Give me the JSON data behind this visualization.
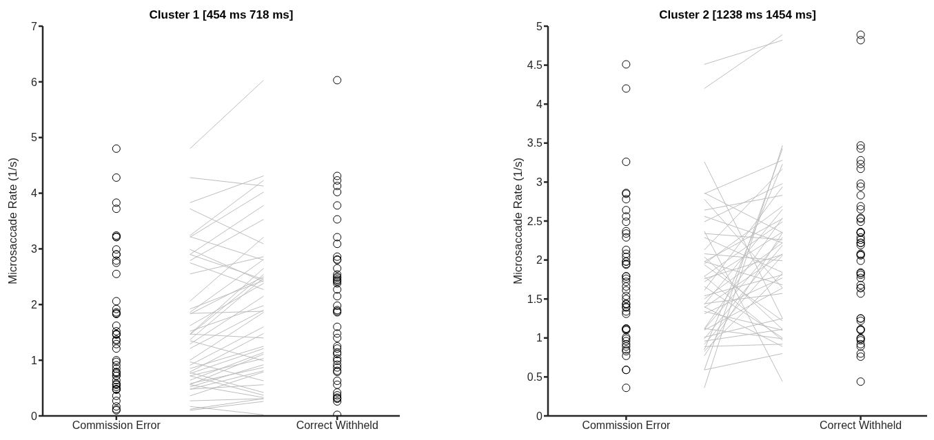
{
  "chart_data": [
    {
      "type": "scatter",
      "title": "Cluster 1 [454 ms 718 ms]",
      "ylabel": "Microsaccade Rate (1/s)",
      "line_style": "solid",
      "categories": [
        "Commission Error",
        null,
        null,
        "Correct Withheld"
      ],
      "ylim": [
        0,
        7
      ],
      "yticks": [
        0,
        1,
        2,
        3,
        4,
        5,
        6,
        7
      ],
      "series": [
        {
          "color": "#000000",
          "marker": "circle",
          "x": [
            "Commission Error",
            "Commission Error",
            "Commission Error",
            "Commission Error",
            "Commission Error",
            "Commission Error",
            "Commission Error",
            "Commission Error",
            "Commission Error",
            "Commission Error",
            "Commission Error",
            "Commission Error",
            "Commission Error",
            "Commission Error",
            "Commission Error",
            "Commission Error",
            "Commission Error",
            "Commission Error",
            "Commission Error",
            "Commission Error",
            "Commission Error",
            "Commission Error",
            "Commission Error",
            "Commission Error",
            "Commission Error",
            "Commission Error",
            "Commission Error",
            "Commission Error",
            "Commission Error",
            "Commission Error",
            "Commission Error",
            "Commission Error",
            "Commission Error",
            "Commission Error",
            "Commission Error",
            "Commission Error",
            "Commission Error",
            "Commission Error",
            "Commission Error",
            "Commission Error",
            "Commission Error",
            "Commission Error",
            "Commission Error",
            "Commission Error",
            "Commission Error",
            "Commission Error",
            "Commission Error",
            "Commission Error",
            "Commission Error"
          ],
          "values": [
            4.8,
            4.28,
            3.83,
            3.72,
            3.21,
            3.24,
            3.22,
            2.99,
            2.9,
            2.9,
            2.75,
            2.79,
            2.55,
            2.06,
            1.92,
            1.84,
            1.83,
            1.86,
            1.62,
            1.52,
            1.47,
            1.47,
            1.35,
            1.29,
            1.21,
            1.46,
            1.37,
            0.97,
            0.91,
            1.0,
            0.85,
            0.76,
            0.78,
            0.79,
            0.72,
            0.72,
            0.64,
            0.56,
            0.52,
            0.56,
            0.58,
            0.48,
            0.47,
            0.48,
            0.36,
            0.27,
            0.17,
            0.12,
            0.1
          ]
        },
        {
          "color": "#000000",
          "marker": "circle",
          "x": [
            "Correct Withheld",
            "Correct Withheld",
            "Correct Withheld",
            "Correct Withheld",
            "Correct Withheld",
            "Correct Withheld",
            "Correct Withheld",
            "Correct Withheld",
            "Correct Withheld",
            "Correct Withheld",
            "Correct Withheld",
            "Correct Withheld",
            "Correct Withheld",
            "Correct Withheld",
            "Correct Withheld",
            "Correct Withheld",
            "Correct Withheld",
            "Correct Withheld",
            "Correct Withheld",
            "Correct Withheld",
            "Correct Withheld",
            "Correct Withheld",
            "Correct Withheld",
            "Correct Withheld",
            "Correct Withheld",
            "Correct Withheld",
            "Correct Withheld",
            "Correct Withheld",
            "Correct Withheld",
            "Correct Withheld",
            "Correct Withheld",
            "Correct Withheld",
            "Correct Withheld",
            "Correct Withheld",
            "Correct Withheld",
            "Correct Withheld",
            "Correct Withheld",
            "Correct Withheld",
            "Correct Withheld",
            "Correct Withheld",
            "Correct Withheld",
            "Correct Withheld",
            "Correct Withheld",
            "Correct Withheld",
            "Correct Withheld",
            "Correct Withheld",
            "Correct Withheld",
            "Correct Withheld"
          ],
          "values": [
            6.03,
            4.23,
            4.31,
            4.13,
            4.02,
            3.78,
            3.53,
            3.21,
            3.09,
            2.81,
            2.8,
            2.86,
            2.65,
            2.45,
            2.43,
            2.38,
            2.48,
            2.5,
            2.54,
            2.41,
            2.27,
            2.15,
            1.98,
            1.88,
            1.86,
            1.9,
            1.6,
            1.48,
            1.4,
            1.25,
            1.21,
            1.14,
            1.11,
            0.99,
            0.92,
            0.87,
            0.79,
            1.03,
            0.81,
            0.63,
            0.56,
            0.31,
            0.37,
            0.31,
            0.42,
            0.33,
            0.26,
            0.02
          ]
        },
        {
          "type": "line",
          "color": "#bdbdbd",
          "values": [
            null,
            4.8,
            6.03,
            null
          ]
        },
        {
          "type": "line",
          "color": "#bdbdbd",
          "values": [
            null,
            4.28,
            4.13,
            null
          ]
        },
        {
          "type": "line",
          "color": "#bdbdbd",
          "values": [
            null,
            3.83,
            4.31,
            null
          ]
        },
        {
          "type": "line",
          "color": "#bdbdbd",
          "values": [
            null,
            3.72,
            3.09,
            null
          ]
        },
        {
          "type": "line",
          "color": "#bdbdbd",
          "values": [
            null,
            3.24,
            4.23,
            null
          ]
        },
        {
          "type": "line",
          "color": "#bdbdbd",
          "values": [
            null,
            3.22,
            2.8,
            null
          ]
        },
        {
          "type": "line",
          "color": "#bdbdbd",
          "values": [
            null,
            3.21,
            4.02,
            null
          ]
        },
        {
          "type": "line",
          "color": "#bdbdbd",
          "values": [
            null,
            2.99,
            2.41,
            null
          ]
        },
        {
          "type": "line",
          "color": "#bdbdbd",
          "values": [
            null,
            2.9,
            3.78,
            null
          ]
        },
        {
          "type": "line",
          "color": "#bdbdbd",
          "values": [
            null,
            2.9,
            2.45,
            null
          ]
        },
        {
          "type": "line",
          "color": "#bdbdbd",
          "values": [
            null,
            2.79,
            3.53,
            null
          ]
        },
        {
          "type": "line",
          "color": "#bdbdbd",
          "values": [
            null,
            2.75,
            2.27,
            null
          ]
        },
        {
          "type": "line",
          "color": "#bdbdbd",
          "values": [
            null,
            2.55,
            2.86,
            null
          ]
        },
        {
          "type": "line",
          "color": "#bdbdbd",
          "values": [
            null,
            2.06,
            3.21,
            null
          ]
        },
        {
          "type": "line",
          "color": "#bdbdbd",
          "values": [
            null,
            1.92,
            2.43,
            null
          ]
        },
        {
          "type": "line",
          "color": "#bdbdbd",
          "values": [
            null,
            1.86,
            2.81,
            null
          ]
        },
        {
          "type": "line",
          "color": "#bdbdbd",
          "values": [
            null,
            1.84,
            1.88,
            null
          ]
        },
        {
          "type": "line",
          "color": "#bdbdbd",
          "values": [
            null,
            1.83,
            2.5,
            null
          ]
        },
        {
          "type": "line",
          "color": "#bdbdbd",
          "values": [
            null,
            1.62,
            2.38,
            null
          ]
        },
        {
          "type": "line",
          "color": "#bdbdbd",
          "values": [
            null,
            1.52,
            1.98,
            null
          ]
        },
        {
          "type": "line",
          "color": "#bdbdbd",
          "values": [
            null,
            1.47,
            2.65,
            null
          ]
        },
        {
          "type": "line",
          "color": "#bdbdbd",
          "values": [
            null,
            1.47,
            1.4,
            null
          ]
        },
        {
          "type": "line",
          "color": "#bdbdbd",
          "values": [
            null,
            1.46,
            2.54,
            null
          ]
        },
        {
          "type": "line",
          "color": "#bdbdbd",
          "values": [
            null,
            1.37,
            2.48,
            null
          ]
        },
        {
          "type": "line",
          "color": "#bdbdbd",
          "values": [
            null,
            1.35,
            0.99,
            null
          ]
        },
        {
          "type": "line",
          "color": "#bdbdbd",
          "values": [
            null,
            1.29,
            2.15,
            null
          ]
        },
        {
          "type": "line",
          "color": "#bdbdbd",
          "values": [
            null,
            1.21,
            1.9,
            null
          ]
        },
        {
          "type": "line",
          "color": "#bdbdbd",
          "values": [
            null,
            1.0,
            1.86,
            null
          ]
        },
        {
          "type": "line",
          "color": "#bdbdbd",
          "values": [
            null,
            0.97,
            0.63,
            null
          ]
        },
        {
          "type": "line",
          "color": "#bdbdbd",
          "values": [
            null,
            0.91,
            1.6,
            null
          ]
        },
        {
          "type": "line",
          "color": "#bdbdbd",
          "values": [
            null,
            0.85,
            1.25,
            null
          ]
        },
        {
          "type": "line",
          "color": "#bdbdbd",
          "values": [
            null,
            0.79,
            1.48,
            null
          ]
        },
        {
          "type": "line",
          "color": "#bdbdbd",
          "values": [
            null,
            0.78,
            0.42,
            null
          ]
        },
        {
          "type": "line",
          "color": "#bdbdbd",
          "values": [
            null,
            0.76,
            1.21,
            null
          ]
        },
        {
          "type": "line",
          "color": "#bdbdbd",
          "values": [
            null,
            0.72,
            1.03,
            null
          ]
        },
        {
          "type": "line",
          "color": "#bdbdbd",
          "values": [
            null,
            0.72,
            0.37,
            null
          ]
        },
        {
          "type": "line",
          "color": "#bdbdbd",
          "values": [
            null,
            0.64,
            1.14,
            null
          ]
        },
        {
          "type": "line",
          "color": "#bdbdbd",
          "values": [
            null,
            0.58,
            0.87,
            null
          ]
        },
        {
          "type": "line",
          "color": "#bdbdbd",
          "values": [
            null,
            0.56,
            1.11,
            null
          ]
        },
        {
          "type": "line",
          "color": "#bdbdbd",
          "values": [
            null,
            0.56,
            0.33,
            null
          ]
        },
        {
          "type": "line",
          "color": "#bdbdbd",
          "values": [
            null,
            0.52,
            0.92,
            null
          ]
        },
        {
          "type": "line",
          "color": "#bdbdbd",
          "values": [
            null,
            0.48,
            0.56,
            null
          ]
        },
        {
          "type": "line",
          "color": "#bdbdbd",
          "values": [
            null,
            0.48,
            0.81,
            null
          ]
        },
        {
          "type": "line",
          "color": "#bdbdbd",
          "values": [
            null,
            0.36,
            0.79,
            null
          ]
        },
        {
          "type": "line",
          "color": "#bdbdbd",
          "values": [
            null,
            0.27,
            0.31,
            null
          ]
        },
        {
          "type": "line",
          "color": "#bdbdbd",
          "values": [
            null,
            0.17,
            0.02,
            null
          ]
        },
        {
          "type": "line",
          "color": "#bdbdbd",
          "values": [
            null,
            0.12,
            0.31,
            null
          ]
        },
        {
          "type": "line",
          "color": "#bdbdbd",
          "values": [
            null,
            0.1,
            0.26,
            null
          ]
        }
      ]
    },
    {
      "type": "scatter",
      "title": "Cluster 2 [1238 ms 1454 ms]",
      "ylabel": "Microsaccade Rate (1/s)",
      "line_style": "solid",
      "categories": [
        "Commission Error",
        null,
        null,
        "Correct Withheld"
      ],
      "ylim": [
        0,
        5
      ],
      "yticks": [
        0,
        0.5,
        1,
        1.5,
        2,
        2.5,
        3,
        3.5,
        4,
        4.5,
        5
      ],
      "series": [
        {
          "color": "#000000",
          "marker": "circle",
          "x": [
            "Commission Error",
            "Commission Error",
            "Commission Error",
            "Commission Error",
            "Commission Error",
            "Commission Error",
            "Commission Error",
            "Commission Error",
            "Commission Error",
            "Commission Error",
            "Commission Error",
            "Commission Error",
            "Commission Error",
            "Commission Error",
            "Commission Error",
            "Commission Error",
            "Commission Error",
            "Commission Error",
            "Commission Error",
            "Commission Error",
            "Commission Error",
            "Commission Error",
            "Commission Error",
            "Commission Error",
            "Commission Error",
            "Commission Error",
            "Commission Error",
            "Commission Error",
            "Commission Error",
            "Commission Error",
            "Commission Error",
            "Commission Error",
            "Commission Error",
            "Commission Error",
            "Commission Error",
            "Commission Error",
            "Commission Error",
            "Commission Error",
            "Commission Error",
            "Commission Error",
            "Commission Error",
            "Commission Error",
            "Commission Error",
            "Commission Error",
            "Commission Error",
            "Commission Error",
            "Commission Error",
            "Commission Error"
          ],
          "values": [
            4.51,
            4.2,
            3.26,
            2.86,
            2.85,
            2.78,
            2.64,
            2.56,
            2.49,
            2.37,
            2.34,
            2.29,
            2.13,
            2.08,
            2.04,
            1.94,
            1.95,
            1.98,
            1.98,
            1.79,
            1.79,
            1.72,
            1.76,
            1.66,
            1.61,
            1.54,
            1.5,
            1.44,
            1.39,
            1.34,
            1.31,
            1.43,
            1.4,
            1.12,
            1.12,
            1.11,
            1.1,
            1.01,
            0.99,
            0.96,
            0.92,
            0.89,
            0.85,
            0.83,
            0.77,
            0.59,
            0.59,
            0.36
          ]
        },
        {
          "color": "#000000",
          "marker": "circle",
          "x": [
            "Correct Withheld",
            "Correct Withheld",
            "Correct Withheld",
            "Correct Withheld",
            "Correct Withheld",
            "Correct Withheld",
            "Correct Withheld",
            "Correct Withheld",
            "Correct Withheld",
            "Correct Withheld",
            "Correct Withheld",
            "Correct Withheld",
            "Correct Withheld",
            "Correct Withheld",
            "Correct Withheld",
            "Correct Withheld",
            "Correct Withheld",
            "Correct Withheld",
            "Correct Withheld",
            "Correct Withheld",
            "Correct Withheld",
            "Correct Withheld",
            "Correct Withheld",
            "Correct Withheld",
            "Correct Withheld",
            "Correct Withheld",
            "Correct Withheld",
            "Correct Withheld",
            "Correct Withheld",
            "Correct Withheld",
            "Correct Withheld",
            "Correct Withheld",
            "Correct Withheld",
            "Correct Withheld",
            "Correct Withheld",
            "Correct Withheld",
            "Correct Withheld",
            "Correct Withheld",
            "Correct Withheld",
            "Correct Withheld",
            "Correct Withheld",
            "Correct Withheld",
            "Correct Withheld",
            "Correct Withheld",
            "Correct Withheld",
            "Correct Withheld",
            "Correct Withheld",
            "Correct Withheld",
            "Correct Withheld"
          ],
          "values": [
            4.89,
            4.82,
            3.47,
            3.43,
            3.28,
            3.23,
            3.17,
            2.98,
            2.94,
            2.83,
            2.69,
            2.65,
            2.53,
            2.54,
            2.49,
            2.35,
            2.36,
            2.35,
            2.29,
            2.26,
            2.22,
            2.22,
            2.19,
            2.07,
            2.06,
            2.08,
            1.99,
            1.83,
            1.81,
            1.84,
            1.77,
            1.68,
            1.64,
            1.64,
            1.57,
            1.25,
            1.25,
            1.22,
            1.1,
            1.11,
            1.11,
            1.0,
            0.99,
            0.97,
            0.92,
            0.89,
            0.8,
            0.76,
            0.44
          ]
        },
        {
          "type": "line",
          "color": "#bdbdbd",
          "values": [
            null,
            4.51,
            4.82,
            null
          ]
        },
        {
          "type": "line",
          "color": "#bdbdbd",
          "values": [
            null,
            4.2,
            4.89,
            null
          ]
        },
        {
          "type": "line",
          "color": "#bdbdbd",
          "values": [
            null,
            3.26,
            1.25,
            null
          ]
        },
        {
          "type": "line",
          "color": "#bdbdbd",
          "values": [
            null,
            2.86,
            2.35,
            null
          ]
        },
        {
          "type": "line",
          "color": "#bdbdbd",
          "values": [
            null,
            2.85,
            3.28,
            null
          ]
        },
        {
          "type": "line",
          "color": "#bdbdbd",
          "values": [
            null,
            2.78,
            1.64,
            null
          ]
        },
        {
          "type": "line",
          "color": "#bdbdbd",
          "values": [
            null,
            2.64,
            2.83,
            null
          ]
        },
        {
          "type": "line",
          "color": "#bdbdbd",
          "values": [
            null,
            2.56,
            2.22,
            null
          ]
        },
        {
          "type": "line",
          "color": "#bdbdbd",
          "values": [
            null,
            2.49,
            2.98,
            null
          ]
        },
        {
          "type": "line",
          "color": "#bdbdbd",
          "values": [
            null,
            2.37,
            0.44,
            null
          ]
        },
        {
          "type": "line",
          "color": "#bdbdbd",
          "values": [
            null,
            2.34,
            2.26,
            null
          ]
        },
        {
          "type": "line",
          "color": "#bdbdbd",
          "values": [
            null,
            2.29,
            1.84,
            null
          ]
        },
        {
          "type": "line",
          "color": "#bdbdbd",
          "values": [
            null,
            2.13,
            3.17,
            null
          ]
        },
        {
          "type": "line",
          "color": "#bdbdbd",
          "values": [
            null,
            2.08,
            1.99,
            null
          ]
        },
        {
          "type": "line",
          "color": "#bdbdbd",
          "values": [
            null,
            2.04,
            1.11,
            null
          ]
        },
        {
          "type": "line",
          "color": "#bdbdbd",
          "values": [
            null,
            1.98,
            2.53,
            null
          ]
        },
        {
          "type": "line",
          "color": "#bdbdbd",
          "values": [
            null,
            1.98,
            1.68,
            null
          ]
        },
        {
          "type": "line",
          "color": "#bdbdbd",
          "values": [
            null,
            1.95,
            2.69,
            null
          ]
        },
        {
          "type": "line",
          "color": "#bdbdbd",
          "values": [
            null,
            1.94,
            1.22,
            null
          ]
        },
        {
          "type": "line",
          "color": "#bdbdbd",
          "values": [
            null,
            1.79,
            2.49,
            null
          ]
        },
        {
          "type": "line",
          "color": "#bdbdbd",
          "values": [
            null,
            1.79,
            0.97,
            null
          ]
        },
        {
          "type": "line",
          "color": "#bdbdbd",
          "values": [
            null,
            1.76,
            2.07,
            null
          ]
        },
        {
          "type": "line",
          "color": "#bdbdbd",
          "values": [
            null,
            1.72,
            2.36,
            null
          ]
        },
        {
          "type": "line",
          "color": "#bdbdbd",
          "values": [
            null,
            1.66,
            1.0,
            null
          ]
        },
        {
          "type": "line",
          "color": "#bdbdbd",
          "values": [
            null,
            1.61,
            2.94,
            null
          ]
        },
        {
          "type": "line",
          "color": "#bdbdbd",
          "values": [
            null,
            1.54,
            1.81,
            null
          ]
        },
        {
          "type": "line",
          "color": "#bdbdbd",
          "values": [
            null,
            1.5,
            2.22,
            null
          ]
        },
        {
          "type": "line",
          "color": "#bdbdbd",
          "values": [
            null,
            1.44,
            1.57,
            null
          ]
        },
        {
          "type": "line",
          "color": "#bdbdbd",
          "values": [
            null,
            1.43,
            2.65,
            null
          ]
        },
        {
          "type": "line",
          "color": "#bdbdbd",
          "values": [
            null,
            1.4,
            0.89,
            null
          ]
        },
        {
          "type": "line",
          "color": "#bdbdbd",
          "values": [
            null,
            1.39,
            2.08,
            null
          ]
        },
        {
          "type": "line",
          "color": "#bdbdbd",
          "values": [
            null,
            1.34,
            1.1,
            null
          ]
        },
        {
          "type": "line",
          "color": "#bdbdbd",
          "values": [
            null,
            1.31,
            1.77,
            null
          ]
        },
        {
          "type": "line",
          "color": "#bdbdbd",
          "values": [
            null,
            1.12,
            2.54,
            null
          ]
        },
        {
          "type": "line",
          "color": "#bdbdbd",
          "values": [
            null,
            1.12,
            0.99,
            null
          ]
        },
        {
          "type": "line",
          "color": "#bdbdbd",
          "values": [
            null,
            1.11,
            2.29,
            null
          ]
        },
        {
          "type": "line",
          "color": "#bdbdbd",
          "values": [
            null,
            1.1,
            1.64,
            null
          ]
        },
        {
          "type": "line",
          "color": "#bdbdbd",
          "values": [
            null,
            1.01,
            1.25,
            null
          ]
        },
        {
          "type": "line",
          "color": "#bdbdbd",
          "values": [
            null,
            0.99,
            2.19,
            null
          ]
        },
        {
          "type": "line",
          "color": "#bdbdbd",
          "values": [
            null,
            0.96,
            1.11,
            null
          ]
        },
        {
          "type": "line",
          "color": "#bdbdbd",
          "values": [
            null,
            0.92,
            2.06,
            null
          ]
        },
        {
          "type": "line",
          "color": "#bdbdbd",
          "values": [
            null,
            0.89,
            0.92,
            null
          ]
        },
        {
          "type": "line",
          "color": "#bdbdbd",
          "values": [
            null,
            0.85,
            3.23,
            null
          ]
        },
        {
          "type": "line",
          "color": "#bdbdbd",
          "values": [
            null,
            0.83,
            1.83,
            null
          ]
        },
        {
          "type": "line",
          "color": "#bdbdbd",
          "values": [
            null,
            0.77,
            2.35,
            null
          ]
        },
        {
          "type": "line",
          "color": "#bdbdbd",
          "values": [
            null,
            0.59,
            3.43,
            null
          ]
        },
        {
          "type": "line",
          "color": "#bdbdbd",
          "values": [
            null,
            0.59,
            0.8,
            null
          ]
        },
        {
          "type": "line",
          "color": "#bdbdbd",
          "values": [
            null,
            0.36,
            3.47,
            null
          ]
        }
      ]
    }
  ]
}
